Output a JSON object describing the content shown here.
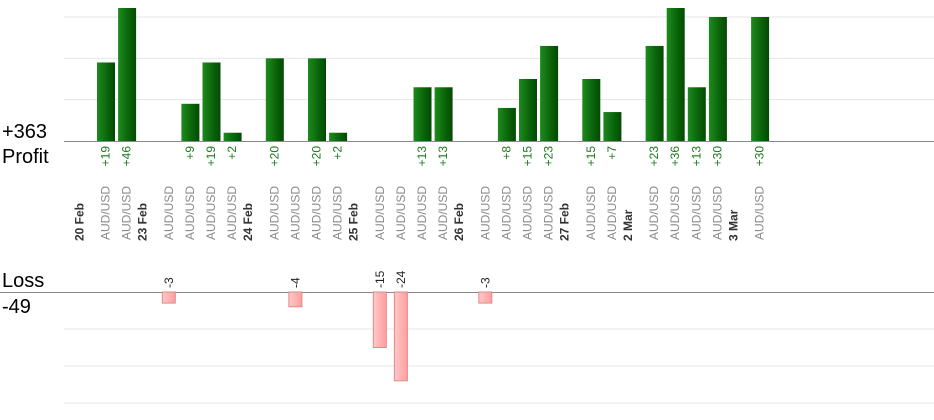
{
  "chart_data": {
    "type": "bar",
    "profit_total_label": "+363",
    "profit_label": "Profit",
    "loss_label": "Loss",
    "loss_total_label": "-49",
    "colors": {
      "profit_bar": "#0a6e0a",
      "profit_text": "#1a7a1a",
      "profit_title": "#1a6a1a",
      "loss_bar": "#ffb0b0",
      "loss_border": "#e08a8a",
      "loss_title": "#3a0a0a",
      "grid": "#e6e6e6",
      "axis": "#888888"
    },
    "profit_ylim": [
      0,
      30
    ],
    "loss_ylim": [
      -30,
      0
    ],
    "grid": true,
    "groups": [
      {
        "date": "20 Feb",
        "trades": [
          {
            "symbol": "AUD/USD",
            "value": 19,
            "label": "+19"
          },
          {
            "symbol": "AUD/USD",
            "value": 46,
            "label": "+46"
          }
        ]
      },
      {
        "date": "23 Feb",
        "trades": [
          {
            "symbol": "AUD/USD",
            "value": -3,
            "label": "-3"
          },
          {
            "symbol": "AUD/USD",
            "value": 9,
            "label": "+9"
          },
          {
            "symbol": "AUD/USD",
            "value": 19,
            "label": "+19"
          },
          {
            "symbol": "AUD/USD",
            "value": 2,
            "label": "+2"
          }
        ]
      },
      {
        "date": "24 Feb",
        "trades": [
          {
            "symbol": "AUD/USD",
            "value": 20,
            "label": "+20"
          },
          {
            "symbol": "AUD/USD",
            "value": -4,
            "label": "-4"
          },
          {
            "symbol": "AUD/USD",
            "value": 20,
            "label": "+20"
          },
          {
            "symbol": "AUD/USD",
            "value": 2,
            "label": "+2"
          }
        ]
      },
      {
        "date": "25 Feb",
        "trades": [
          {
            "symbol": "AUD/USD",
            "value": -15,
            "label": "-15"
          },
          {
            "symbol": "AUD/USD",
            "value": -24,
            "label": "-24"
          },
          {
            "symbol": "AUD/USD",
            "value": 13,
            "label": "+13"
          },
          {
            "symbol": "AUD/USD",
            "value": 13,
            "label": "+13"
          }
        ]
      },
      {
        "date": "26 Feb",
        "trades": [
          {
            "symbol": "AUD/USD",
            "value": -3,
            "label": "-3"
          },
          {
            "symbol": "AUD/USD",
            "value": 8,
            "label": "+8"
          },
          {
            "symbol": "AUD/USD",
            "value": 15,
            "label": "+15"
          },
          {
            "symbol": "AUD/USD",
            "value": 23,
            "label": "+23"
          }
        ]
      },
      {
        "date": "27 Feb",
        "trades": [
          {
            "symbol": "AUD/USD",
            "value": 15,
            "label": "+15"
          },
          {
            "symbol": "AUD/USD",
            "value": 7,
            "label": "+7"
          }
        ]
      },
      {
        "date": "2 Mar",
        "trades": [
          {
            "symbol": "AUD/USD",
            "value": 23,
            "label": "+23"
          },
          {
            "symbol": "AUD/USD",
            "value": 36,
            "label": "+36"
          },
          {
            "symbol": "AUD/USD",
            "value": 13,
            "label": "+13"
          },
          {
            "symbol": "AUD/USD",
            "value": 30,
            "label": "+30"
          }
        ]
      },
      {
        "date": "3 Mar",
        "trades": [
          {
            "symbol": "AUD/USD",
            "value": 30,
            "label": "+30"
          }
        ]
      }
    ]
  }
}
